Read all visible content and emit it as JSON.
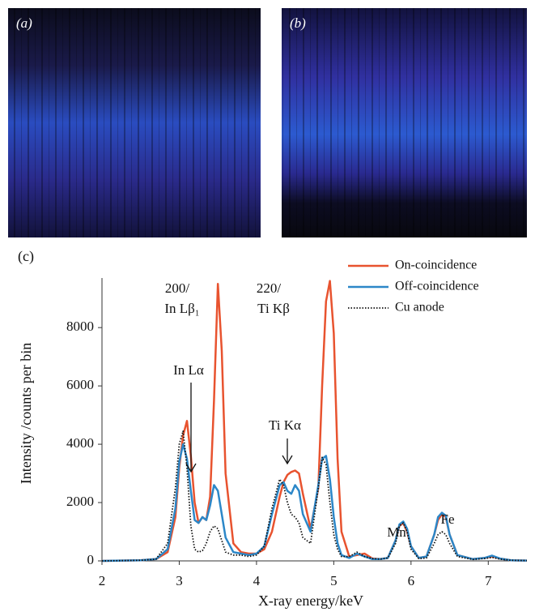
{
  "panels": {
    "a": "(a)",
    "b": "(b)"
  },
  "chart_data": {
    "type": "line",
    "panel_label": "(c)",
    "x_label": "X-ray energy/keV",
    "y_label": "Intensity /counts per bin",
    "xlim": [
      2,
      7.5
    ],
    "xticks": [
      2,
      3,
      4,
      5,
      6,
      7
    ],
    "ylim": [
      0,
      9700
    ],
    "yticks": [
      0,
      2000,
      4000,
      6000,
      8000
    ],
    "legend": "upper right",
    "annotations": [
      "200/",
      "In Lβ₁",
      "220/",
      "Ti Kβ",
      "In Lα",
      "Ti Kα",
      "Mn",
      "Fe"
    ],
    "x": [
      2.0,
      2.5,
      2.7,
      2.85,
      2.95,
      3.0,
      3.05,
      3.1,
      3.15,
      3.2,
      3.25,
      3.3,
      3.35,
      3.4,
      3.45,
      3.5,
      3.55,
      3.6,
      3.7,
      3.8,
      3.9,
      4.0,
      4.1,
      4.2,
      4.3,
      4.35,
      4.4,
      4.45,
      4.5,
      4.55,
      4.6,
      4.7,
      4.8,
      4.85,
      4.9,
      4.95,
      5.0,
      5.05,
      5.1,
      5.2,
      5.3,
      5.4,
      5.5,
      5.6,
      5.7,
      5.8,
      5.85,
      5.9,
      5.95,
      6.0,
      6.1,
      6.2,
      6.3,
      6.35,
      6.4,
      6.45,
      6.5,
      6.6,
      6.8,
      6.95,
      7.05,
      7.15,
      7.3,
      7.5
    ],
    "series": [
      {
        "name": "On-coincidence",
        "color": "#e8532f",
        "style": "solid",
        "values": [
          0,
          20,
          60,
          300,
          1500,
          3200,
          4300,
          4800,
          3600,
          2000,
          1300,
          1500,
          1400,
          2200,
          5500,
          9500,
          7200,
          3000,
          600,
          300,
          250,
          250,
          400,
          1000,
          2200,
          2700,
          2950,
          3050,
          3100,
          3000,
          2300,
          1100,
          2500,
          6000,
          8900,
          9600,
          7800,
          3500,
          1000,
          150,
          200,
          250,
          80,
          60,
          100,
          700,
          1200,
          1300,
          1000,
          500,
          100,
          150,
          900,
          1400,
          1600,
          1500,
          900,
          200,
          60,
          100,
          150,
          80,
          20,
          10
        ]
      },
      {
        "name": "Off-coincidence",
        "color": "#2c87c8",
        "style": "solid",
        "values": [
          0,
          20,
          60,
          400,
          1800,
          3400,
          4000,
          3500,
          2400,
          1400,
          1300,
          1500,
          1400,
          1900,
          2600,
          2400,
          1600,
          800,
          300,
          250,
          200,
          250,
          500,
          1600,
          2600,
          2700,
          2400,
          2300,
          2600,
          2400,
          1600,
          1000,
          2600,
          3500,
          3600,
          2800,
          1500,
          600,
          200,
          100,
          250,
          150,
          60,
          60,
          100,
          700,
          1250,
          1350,
          1100,
          500,
          100,
          150,
          900,
          1500,
          1650,
          1550,
          900,
          200,
          60,
          100,
          180,
          80,
          20,
          10
        ]
      },
      {
        "name": "Cu anode",
        "color": "#111111",
        "style": "dotted",
        "values": [
          0,
          20,
          60,
          600,
          2500,
          4000,
          4450,
          3200,
          1200,
          400,
          300,
          350,
          600,
          1000,
          1200,
          1100,
          700,
          300,
          200,
          200,
          150,
          200,
          500,
          1800,
          2800,
          2600,
          2000,
          1600,
          1500,
          1300,
          800,
          600,
          2500,
          3550,
          3300,
          2000,
          900,
          400,
          150,
          150,
          300,
          150,
          80,
          60,
          100,
          600,
          1200,
          1300,
          1000,
          400,
          80,
          100,
          600,
          900,
          1000,
          900,
          600,
          150,
          50,
          80,
          120,
          60,
          20,
          10
        ]
      }
    ]
  }
}
